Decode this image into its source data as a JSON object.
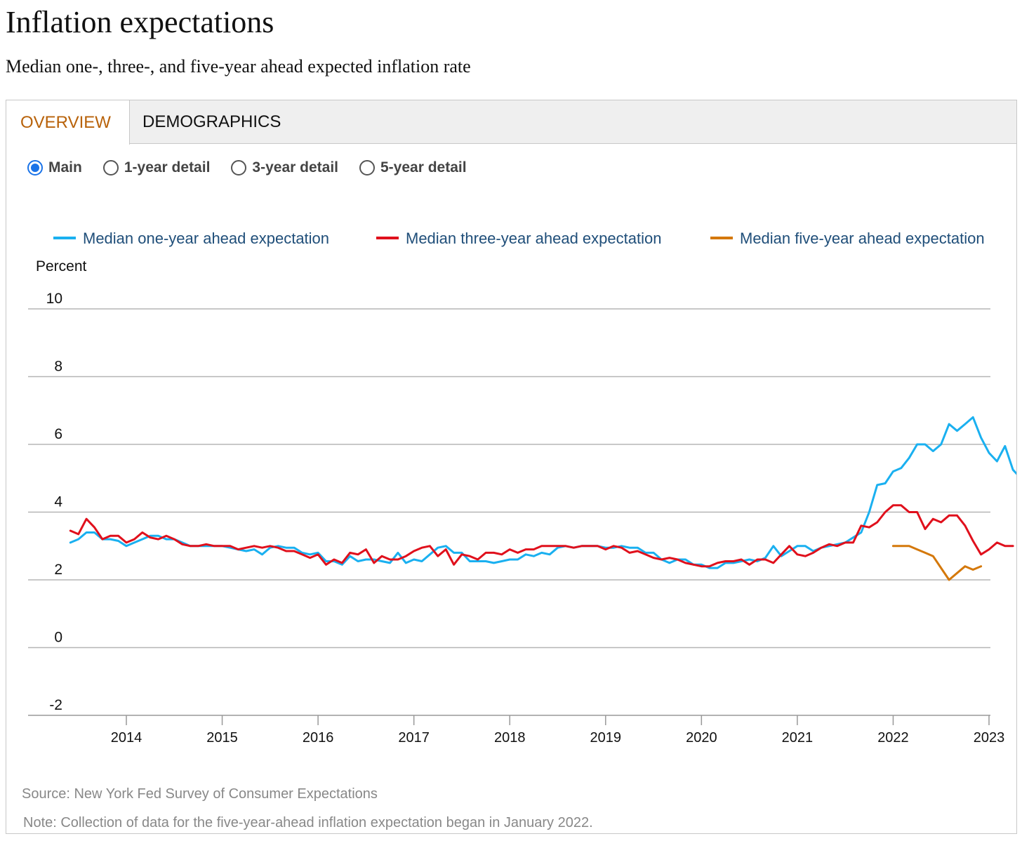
{
  "header": {
    "title": "Inflation expectations",
    "subtitle": "Median one-, three-, and five-year ahead expected inflation rate"
  },
  "tabs": [
    {
      "label": "OVERVIEW",
      "active": true
    },
    {
      "label": "DEMOGRAPHICS",
      "active": false
    }
  ],
  "radios": [
    {
      "label": "Main",
      "selected": true
    },
    {
      "label": "1-year detail",
      "selected": false
    },
    {
      "label": "3-year detail",
      "selected": false
    },
    {
      "label": "5-year detail",
      "selected": false
    }
  ],
  "footer": {
    "source": "Source: New York Fed Survey of Consumer Expectations",
    "note": "Note: Collection of data for the five-year-ahead inflation expectation began in January 2022."
  },
  "chart_data": {
    "type": "line",
    "ylabel": "Percent",
    "ylim": [
      -2,
      10
    ],
    "yticks": [
      -2,
      0,
      2,
      4,
      6,
      8,
      10
    ],
    "xlim": [
      "2013-01",
      "2023-01"
    ],
    "xticks": [
      "2014",
      "2015",
      "2016",
      "2017",
      "2018",
      "2019",
      "2020",
      "2021",
      "2022",
      "2023"
    ],
    "legend_position": "top",
    "grid": true,
    "series": [
      {
        "name": "Median one-year ahead expectation",
        "color": "#1ab0f0",
        "start": "2013-06",
        "values": [
          3.1,
          3.2,
          3.4,
          3.4,
          3.2,
          3.2,
          3.15,
          3.0,
          3.1,
          3.2,
          3.3,
          3.3,
          3.2,
          3.2,
          3.1,
          3.0,
          3.0,
          3.0,
          3.0,
          3.0,
          2.95,
          2.9,
          2.85,
          2.9,
          2.75,
          2.95,
          3.0,
          2.95,
          2.95,
          2.8,
          2.75,
          2.8,
          2.55,
          2.55,
          2.45,
          2.7,
          2.55,
          2.6,
          2.6,
          2.55,
          2.5,
          2.8,
          2.5,
          2.6,
          2.55,
          2.75,
          2.95,
          3.0,
          2.8,
          2.8,
          2.55,
          2.55,
          2.55,
          2.5,
          2.55,
          2.6,
          2.6,
          2.75,
          2.7,
          2.8,
          2.75,
          2.95,
          3.0,
          2.95,
          3.0,
          3.0,
          3.0,
          2.95,
          2.95,
          3.0,
          2.95,
          2.95,
          2.8,
          2.8,
          2.6,
          2.5,
          2.6,
          2.6,
          2.45,
          2.45,
          2.35,
          2.35,
          2.5,
          2.5,
          2.55,
          2.6,
          2.55,
          2.65,
          3.0,
          2.7,
          2.85,
          3.0,
          3.0,
          2.85,
          2.95,
          3.0,
          3.05,
          3.1,
          3.25,
          3.4,
          4.0,
          4.8,
          4.85,
          5.2,
          5.3,
          5.6,
          6.0,
          6.0,
          5.8,
          6.0,
          6.6,
          6.4,
          6.6,
          6.8,
          6.2,
          5.75,
          5.5,
          5.95,
          5.25,
          5.0
        ]
      },
      {
        "name": "Median three-year ahead expectation",
        "color": "#e0101c",
        "start": "2013-06",
        "values": [
          3.45,
          3.35,
          3.8,
          3.55,
          3.2,
          3.3,
          3.3,
          3.1,
          3.2,
          3.4,
          3.25,
          3.2,
          3.3,
          3.2,
          3.05,
          3.0,
          3.0,
          3.05,
          3.0,
          3.0,
          3.0,
          2.9,
          2.95,
          3.0,
          2.95,
          3.0,
          2.95,
          2.85,
          2.85,
          2.75,
          2.65,
          2.75,
          2.45,
          2.6,
          2.5,
          2.8,
          2.75,
          2.9,
          2.5,
          2.7,
          2.6,
          2.6,
          2.7,
          2.85,
          2.95,
          3.0,
          2.7,
          2.9,
          2.45,
          2.75,
          2.7,
          2.6,
          2.8,
          2.8,
          2.75,
          2.9,
          2.8,
          2.9,
          2.9,
          3.0,
          3.0,
          3.0,
          3.0,
          2.95,
          3.0,
          3.0,
          3.0,
          2.9,
          3.0,
          2.95,
          2.8,
          2.85,
          2.75,
          2.65,
          2.6,
          2.65,
          2.6,
          2.5,
          2.45,
          2.4,
          2.4,
          2.5,
          2.55,
          2.55,
          2.6,
          2.45,
          2.6,
          2.6,
          2.5,
          2.75,
          3.0,
          2.75,
          2.7,
          2.8,
          2.95,
          3.05,
          3.0,
          3.1,
          3.1,
          3.6,
          3.55,
          3.7,
          4.0,
          4.2,
          4.2,
          4.0,
          4.0,
          3.5,
          3.8,
          3.7,
          3.9,
          3.9,
          3.6,
          3.15,
          2.75,
          2.9,
          3.1,
          3.0,
          3.0
        ]
      },
      {
        "name": "Median five-year ahead expectation",
        "color": "#d4780a",
        "start": "2022-01",
        "values": [
          3.0,
          3.0,
          3.0,
          2.9,
          2.8,
          2.7,
          2.35,
          2.0,
          2.2,
          2.4,
          2.3,
          2.4
        ]
      }
    ]
  }
}
